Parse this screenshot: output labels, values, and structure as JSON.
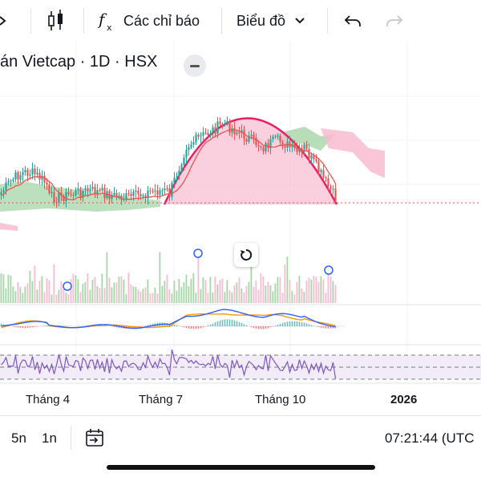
{
  "toolbar": {
    "indicators_label": "Các chỉ báo",
    "chart_type_label": "Biểu đồ"
  },
  "chart": {
    "title": "án Vietcap · 1D · HSX"
  },
  "time_axis": {
    "labels": [
      "Tháng 4",
      "Tháng 7",
      "Tháng 10",
      "2026"
    ]
  },
  "range_bar": {
    "buttons": [
      "5n",
      "1n"
    ],
    "clock": "07:21:44 (UTC"
  },
  "colors": {
    "up": "#26a69a",
    "down": "#ef5350",
    "arc": "#e91e63",
    "cloud_green": "#a5d6a7",
    "cloud_red": "#f8bbd0",
    "macd_blue": "#2962ff",
    "macd_orange": "#ff9800",
    "rsi_purple": "#7e57c2"
  }
}
